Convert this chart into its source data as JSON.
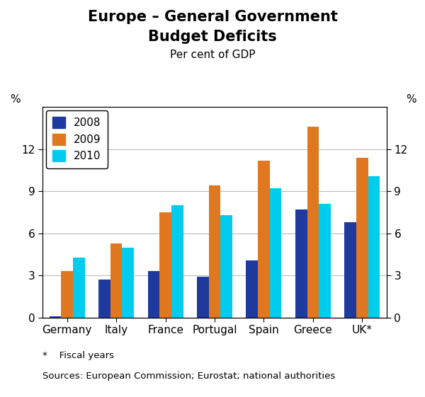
{
  "title_line1": "Europe – General Government",
  "title_line2": "Budget Deficits",
  "subtitle": "Per cent of GDP",
  "categories": [
    "Germany",
    "Italy",
    "France",
    "Portugal",
    "Spain",
    "Greece",
    "UK*"
  ],
  "years": [
    "2008",
    "2009",
    "2010"
  ],
  "values": {
    "2008": [
      0.1,
      2.7,
      3.3,
      2.9,
      4.1,
      7.7,
      6.8
    ],
    "2009": [
      3.3,
      5.3,
      7.5,
      9.4,
      11.2,
      13.6,
      11.4
    ],
    "2010": [
      4.3,
      5.0,
      8.0,
      7.3,
      9.2,
      8.1,
      10.1
    ]
  },
  "colors": {
    "2008": "#1f3a9f",
    "2009": "#e07820",
    "2010": "#00ccee"
  },
  "ylim": [
    0,
    15
  ],
  "yticks": [
    0,
    3,
    6,
    9,
    12
  ],
  "ylabel_left": "%",
  "ylabel_right": "%",
  "footnote1": "*    Fiscal years",
  "footnote2": "Sources: European Commission; Eurostat; national authorities",
  "background_color": "#ffffff",
  "plot_background": "#ffffff",
  "bar_width": 0.24,
  "title_fontsize": 15,
  "subtitle_fontsize": 11,
  "tick_fontsize": 11,
  "legend_fontsize": 11
}
